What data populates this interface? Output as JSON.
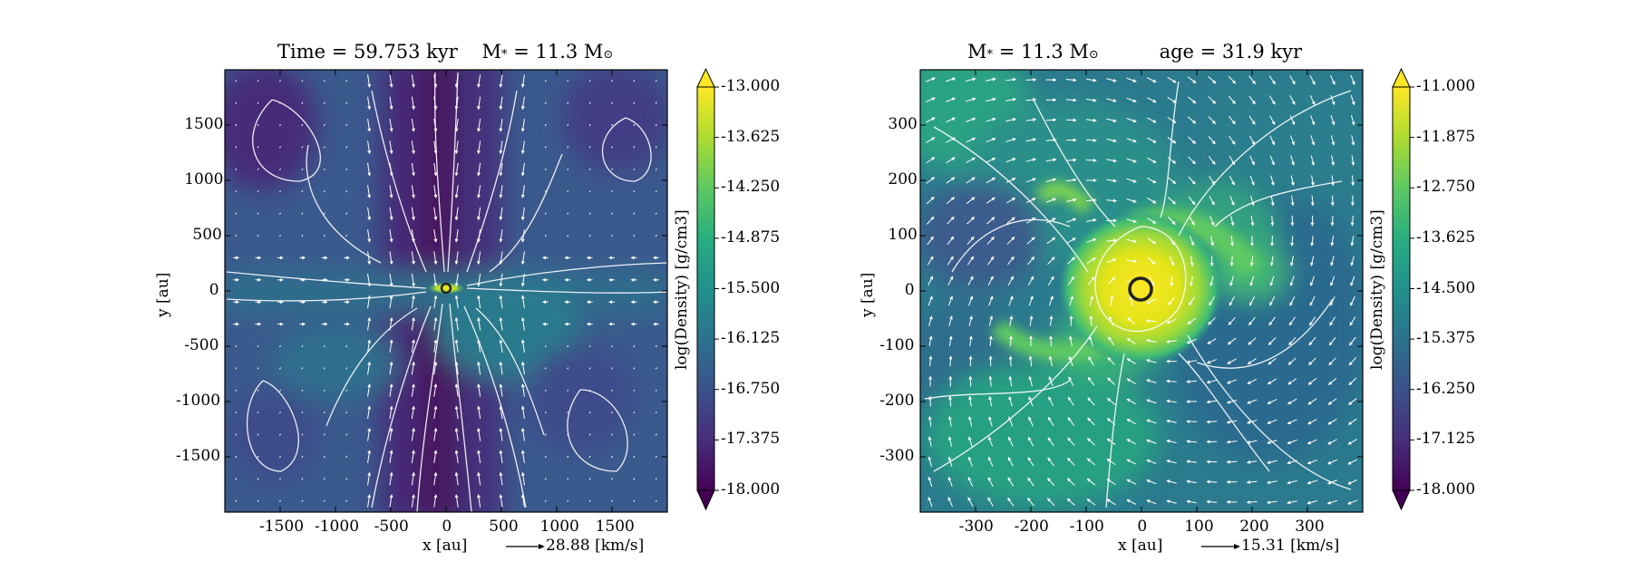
{
  "chart_data": [
    {
      "type": "heatmap",
      "title": "Time = 59.753 kyr",
      "title_mass_prefix": "M",
      "title_mass_sub": "*",
      "title_mass_value": "= 11.3 M",
      "title_mass_unit_sub": "⊙",
      "xlabel": "x [au]",
      "ylabel": "y [au]",
      "xlim": [
        -2000,
        2000
      ],
      "ylim": [
        -2000,
        2000
      ],
      "xticks": [
        "-1500",
        "-1000",
        "-500",
        "0",
        "500",
        "1000",
        "1500"
      ],
      "yticks": [
        "1500",
        "1000",
        "500",
        "0",
        "-500",
        "-1000",
        "-1500"
      ],
      "colorbar_label": "log(Density) [g/cm3]",
      "colorbar_range": [
        -18.0,
        -13.0
      ],
      "colorbar_ticks": [
        "-13.000",
        "-13.625",
        "-14.250",
        "-14.875",
        "-15.500",
        "-16.125",
        "-16.750",
        "-17.375",
        "-18.000"
      ],
      "velocity_key": "28.88 [km/s]",
      "colormap": "viridis"
    },
    {
      "type": "heatmap",
      "title_mass_prefix": "M",
      "title_mass_sub": "*",
      "title_mass_value": "= 11.3 M",
      "title_mass_unit_sub": "⊙",
      "title_age": "age = 31.9 kyr",
      "xlabel": "x [au]",
      "ylabel": "y [au]",
      "xlim": [
        -400,
        400
      ],
      "ylim": [
        -400,
        400
      ],
      "xticks": [
        "-300",
        "-200",
        "-100",
        "0",
        "100",
        "200",
        "300"
      ],
      "yticks": [
        "300",
        "200",
        "100",
        "0",
        "-100",
        "-200",
        "-300"
      ],
      "colorbar_label": "log(Density) [g/cm3]",
      "colorbar_range": [
        -18.0,
        -11.0
      ],
      "colorbar_ticks": [
        "-11.000",
        "-11.875",
        "-12.750",
        "-13.625",
        "-14.500",
        "-15.375",
        "-16.250",
        "-17.125",
        "-18.000"
      ],
      "velocity_key": "15.31 [km/s]",
      "colormap": "viridis"
    }
  ]
}
